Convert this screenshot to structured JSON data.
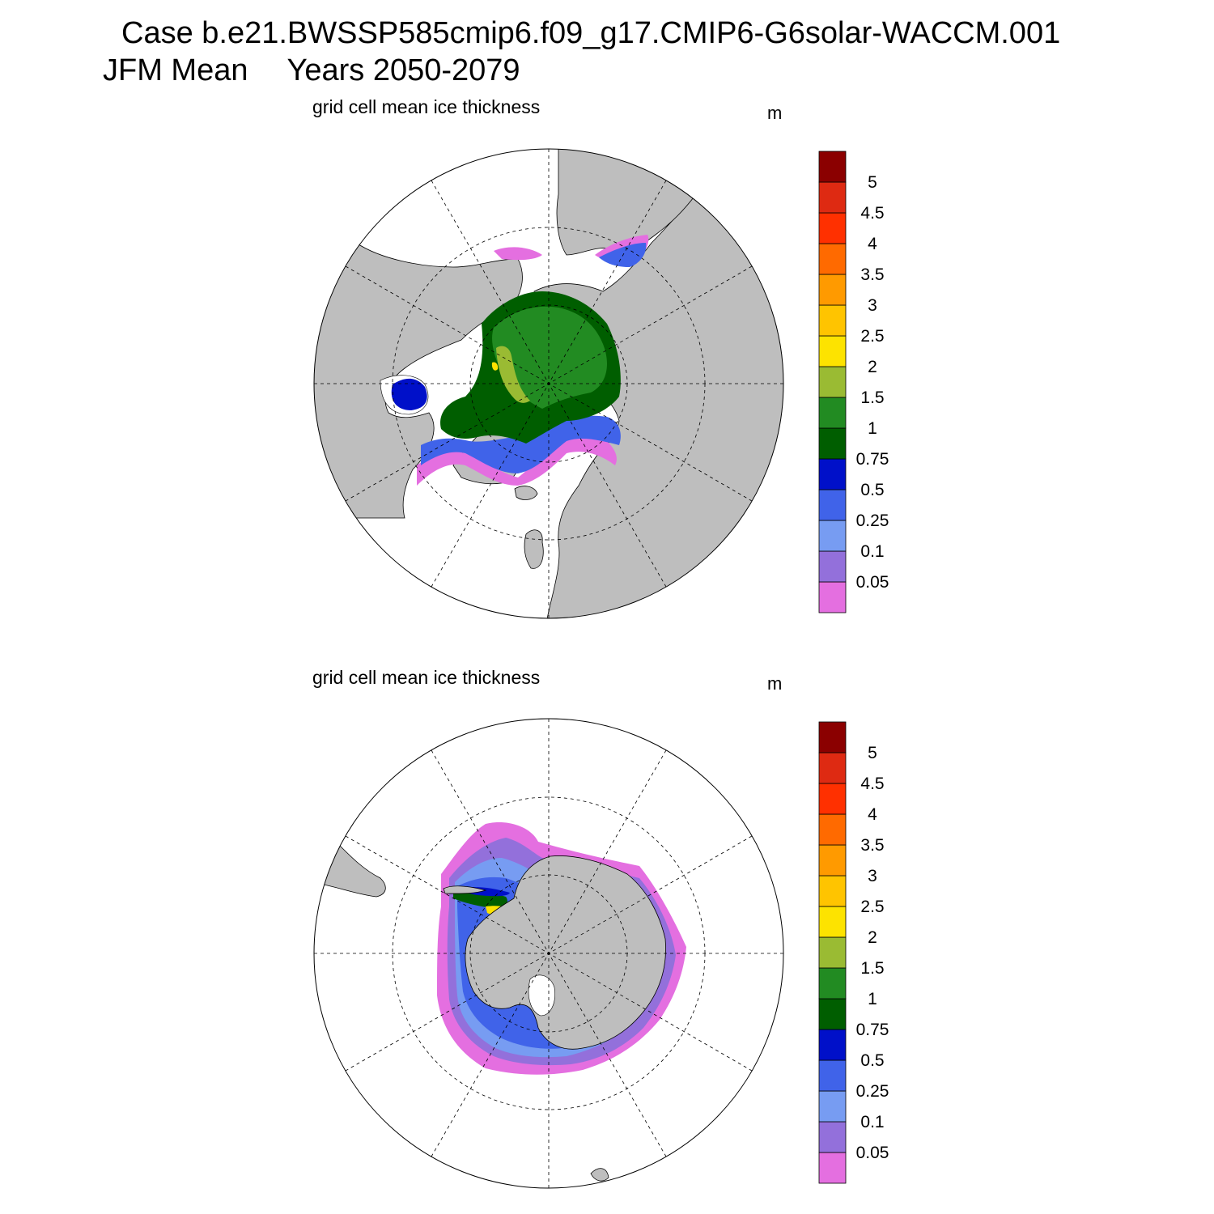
{
  "header": {
    "case_line": "Case b.e21.BWSSP585cmip6.f09_g17.CMIP6-G6solar-WACCM.001",
    "season": "JFM Mean",
    "years": "Years 2050-2079"
  },
  "panels": [
    {
      "hemisphere": "north",
      "title": "grid cell mean ice thickness",
      "units": "m"
    },
    {
      "hemisphere": "south",
      "title": "grid cell mean ice thickness",
      "units": "m"
    }
  ],
  "colorbar": {
    "levels": [
      "0.05",
      "0.1",
      "0.25",
      "0.5",
      "0.75",
      "1",
      "1.5",
      "2",
      "2.5",
      "3",
      "3.5",
      "4",
      "4.5",
      "5"
    ],
    "colors": [
      "#e46fe0",
      "#9370db",
      "#779cf2",
      "#4063e9",
      "#0010c9",
      "#005e00",
      "#228b22",
      "#9abb33",
      "#fde300",
      "#ffc400",
      "#ff9a00",
      "#ff6a00",
      "#ff3000",
      "#de2a12",
      "#8b0000"
    ]
  },
  "map_colors": {
    "land": "#bebebe",
    "ocean": "#ffffff"
  }
}
